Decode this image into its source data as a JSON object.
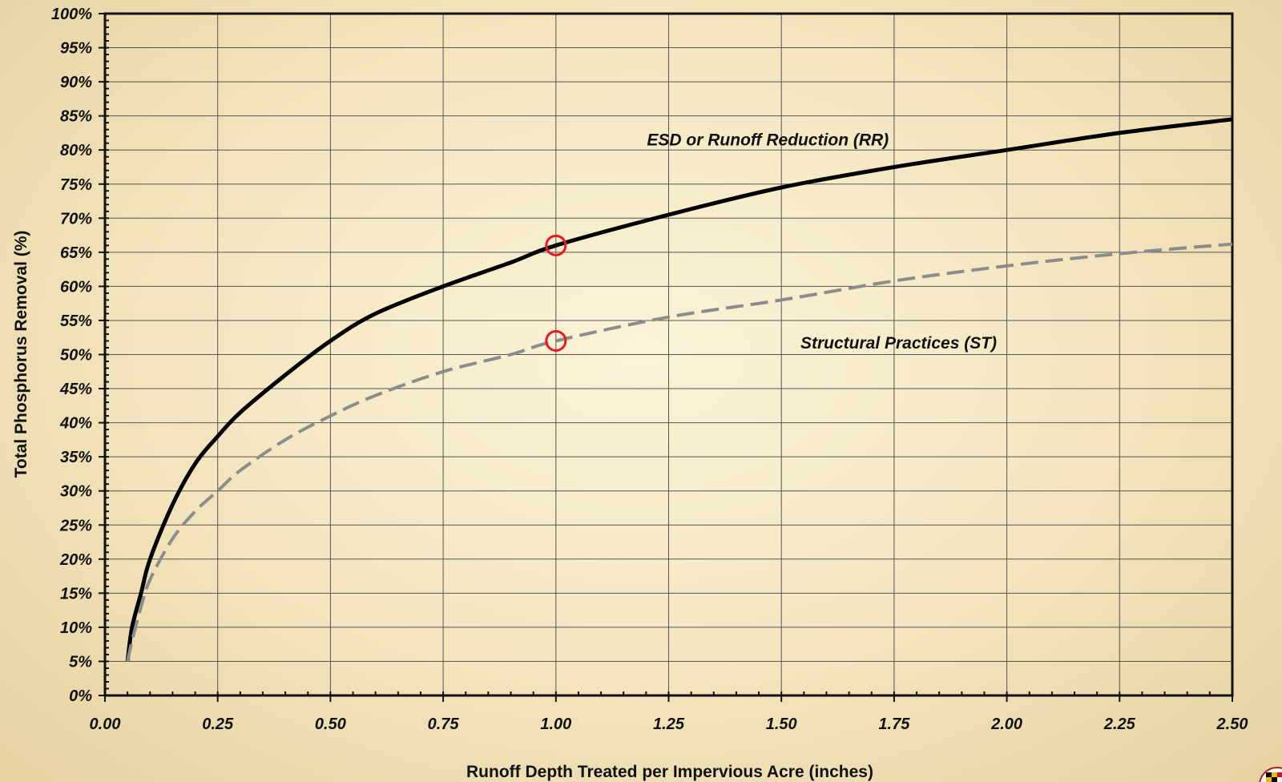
{
  "chart_data": {
    "type": "line",
    "title": "",
    "xlabel": "Runoff Depth Treated per Impervious Acre (inches)",
    "ylabel": "Total Phosphorus Removal (%)",
    "xlim": [
      0,
      2.5
    ],
    "ylim": [
      0,
      100
    ],
    "x_ticks": [
      "0.00",
      "0.25",
      "0.50",
      "0.75",
      "1.00",
      "1.25",
      "1.50",
      "1.75",
      "2.00",
      "2.25",
      "2.50"
    ],
    "y_ticks": [
      "0%",
      "5%",
      "10%",
      "15%",
      "20%",
      "25%",
      "30%",
      "35%",
      "40%",
      "45%",
      "50%",
      "55%",
      "60%",
      "65%",
      "70%",
      "75%",
      "80%",
      "85%",
      "90%",
      "95%",
      "100%"
    ],
    "grid": true,
    "series": [
      {
        "name": "ESD or Runoff Reduction (RR)",
        "style": "solid",
        "color": "#000000",
        "points": [
          [
            0.05,
            5
          ],
          [
            0.06,
            10
          ],
          [
            0.08,
            15
          ],
          [
            0.1,
            20
          ],
          [
            0.15,
            28
          ],
          [
            0.2,
            34
          ],
          [
            0.25,
            38
          ],
          [
            0.3,
            41.5
          ],
          [
            0.4,
            47
          ],
          [
            0.5,
            52
          ],
          [
            0.6,
            56
          ],
          [
            0.75,
            60
          ],
          [
            0.9,
            63.5
          ],
          [
            1.0,
            66
          ],
          [
            1.25,
            70.5
          ],
          [
            1.5,
            74.5
          ],
          [
            1.75,
            77.5
          ],
          [
            2.0,
            80
          ],
          [
            2.25,
            82.5
          ],
          [
            2.5,
            84.5
          ]
        ]
      },
      {
        "name": "Structural Practices (ST)",
        "style": "dashed",
        "color": "#8c8c8c",
        "points": [
          [
            0.05,
            5
          ],
          [
            0.06,
            8
          ],
          [
            0.08,
            13
          ],
          [
            0.1,
            17
          ],
          [
            0.15,
            23
          ],
          [
            0.2,
            27
          ],
          [
            0.25,
            30
          ],
          [
            0.3,
            33
          ],
          [
            0.4,
            37.5
          ],
          [
            0.5,
            41
          ],
          [
            0.6,
            44
          ],
          [
            0.75,
            47.5
          ],
          [
            0.9,
            50
          ],
          [
            1.0,
            52
          ],
          [
            1.25,
            55.5
          ],
          [
            1.5,
            58
          ],
          [
            1.75,
            60.8
          ],
          [
            2.0,
            63
          ],
          [
            2.25,
            64.8
          ],
          [
            2.5,
            66.2
          ]
        ]
      }
    ],
    "markers": [
      {
        "x": 1.0,
        "y": 66,
        "shape": "circle",
        "color": "#e8191e"
      },
      {
        "x": 1.0,
        "y": 52,
        "shape": "circle",
        "color": "#e8191e"
      }
    ],
    "annotations": [
      {
        "text": "ESD or Runoff Reduction (RR)",
        "x": 1.47,
        "y": 81.5
      },
      {
        "text": "Structural Practices (ST)",
        "x": 1.76,
        "y": 51.7
      }
    ]
  },
  "colors": {
    "background": "#f6e9c6",
    "grid": "#555555",
    "axis": "#111111",
    "marker": "#e8191e"
  },
  "logo": {
    "icon": "maryland-flag-seal-icon"
  }
}
